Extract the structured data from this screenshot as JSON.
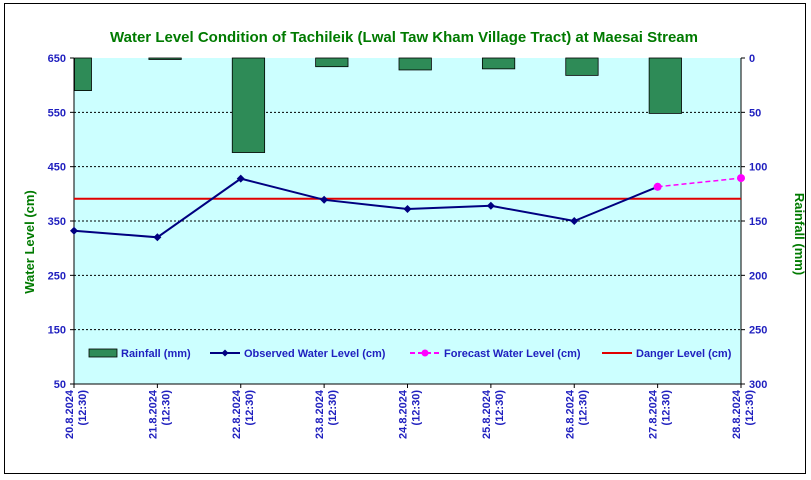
{
  "chart_data": {
    "type": "bar+line",
    "title": "Water Level Condition of Tachileik (Lwal Taw Kham Village Tract) at Maesai Stream",
    "ylabel": "Water Level (cm)",
    "y2label": "Rainfall (mm)",
    "ylim": [
      50,
      650
    ],
    "yticks": [
      50,
      150,
      250,
      350,
      450,
      550,
      650
    ],
    "y2lim": [
      0,
      300
    ],
    "y2ticks": [
      0,
      50,
      100,
      150,
      200,
      250,
      300
    ],
    "y2_inverted": true,
    "categories": [
      [
        "20.8.2024",
        "(12:30)"
      ],
      [
        "21.8.2024",
        "(12:30)"
      ],
      [
        "22.8.2024",
        "(12:30)"
      ],
      [
        "23.8.2024",
        "(12:30)"
      ],
      [
        "24.8.2024",
        "(12:30)"
      ],
      [
        "25.8.2024",
        "(12:30)"
      ],
      [
        "26.8.2024",
        "(12:30)"
      ],
      [
        "27.8.2024",
        "(12:30)"
      ],
      [
        "28.8.2024",
        "(12:30)"
      ]
    ],
    "rainfall": {
      "name": "Rainfall (mm)",
      "color": "#2e8b57",
      "values": [
        30,
        1,
        87,
        8,
        11,
        10,
        16,
        51,
        null
      ]
    },
    "observed": {
      "name": "Observed Water Level (cm)",
      "color": "#000080",
      "values": [
        332,
        320,
        428,
        389,
        372,
        378,
        350,
        413,
        null
      ]
    },
    "forecast": {
      "name": "Forecast Water Level (cm)",
      "color": "#ff00ff",
      "values": [
        null,
        null,
        null,
        null,
        null,
        null,
        null,
        413,
        429
      ]
    },
    "danger": {
      "name": "Danger Level (cm)",
      "color": "#e00000",
      "value": 391
    },
    "plot_background": "#ccffff",
    "grid": "horizontal-dashed",
    "legend_placement": "bottom-inside"
  }
}
